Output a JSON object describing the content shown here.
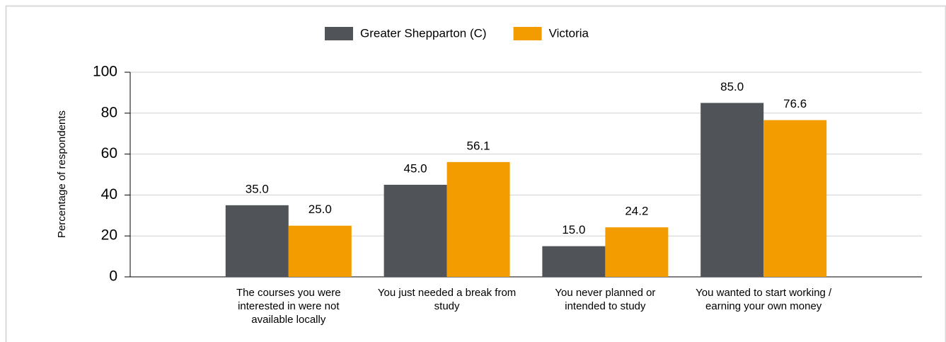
{
  "chart_data": {
    "type": "bar",
    "categories": [
      "The courses you were interested in were not available locally",
      "You just needed a break from study",
      "You never planned or intended to study",
      "You wanted to start working / earning your own money"
    ],
    "series": [
      {
        "name": "Greater Shepparton (C)",
        "color": "#505458",
        "values": [
          35.0,
          45.0,
          15.0,
          85.0
        ],
        "value_labels": [
          "35.0",
          "45.0",
          "15.0",
          "85.0"
        ]
      },
      {
        "name": "Victoria",
        "color": "#f39c00",
        "values": [
          25.0,
          56.1,
          24.2,
          76.6
        ],
        "value_labels": [
          "25.0",
          "56.1",
          "24.2",
          "76.6"
        ]
      }
    ],
    "y_label": "Percentage of respondents",
    "ylim": [
      0,
      100
    ],
    "yticks": [
      0,
      20,
      40,
      60,
      80,
      100
    ],
    "grid": true
  }
}
